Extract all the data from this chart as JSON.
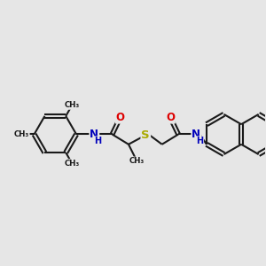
{
  "bg_color": "#e6e6e6",
  "line_color": "#1a1a1a",
  "o_color": "#dd0000",
  "n_color": "#0000bb",
  "s_color": "#aaaa00",
  "bond_lw": 1.5,
  "font_size": 8.5,
  "xlim": [
    0,
    10
  ],
  "ylim": [
    2.5,
    8.0
  ]
}
